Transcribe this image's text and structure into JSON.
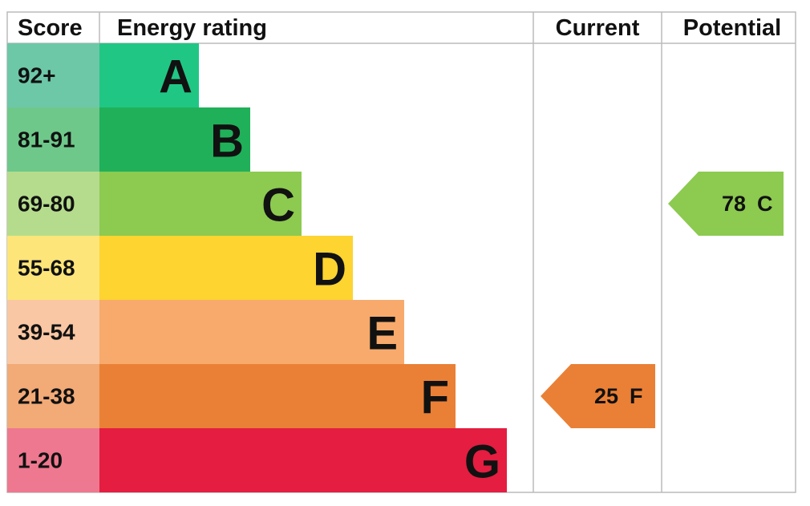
{
  "headers": {
    "score": "Score",
    "rating": "Energy rating",
    "current": "Current",
    "potential": "Potential"
  },
  "bands": [
    {
      "score": "92+",
      "letter": "A",
      "score_color": "#6dc8a8",
      "color": "#20c784"
    },
    {
      "score": "81-91",
      "letter": "B",
      "score_color": "#6ec88a",
      "color": "#21b05a"
    },
    {
      "score": "69-80",
      "letter": "C",
      "score_color": "#b5dc8c",
      "color": "#8cca50"
    },
    {
      "score": "55-68",
      "letter": "D",
      "score_color": "#fde57a",
      "color": "#fdd430"
    },
    {
      "score": "39-54",
      "letter": "E",
      "score_color": "#f9c7a3",
      "color": "#f7aa6b"
    },
    {
      "score": "21-38",
      "letter": "F",
      "score_color": "#f2aa76",
      "color": "#ea8035"
    },
    {
      "score": "1-20",
      "letter": "G",
      "score_color": "#ee788f",
      "color": "#e41d41"
    }
  ],
  "current": {
    "value": 25,
    "letter": "F"
  },
  "potential": {
    "value": 78,
    "letter": "C"
  }
}
